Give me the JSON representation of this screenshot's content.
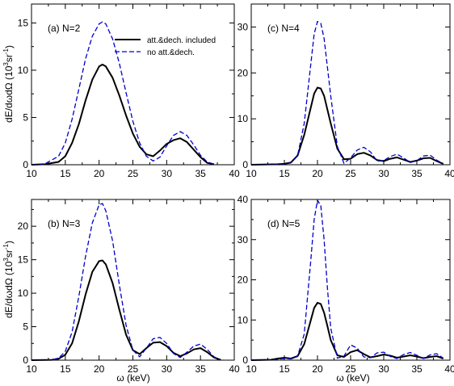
{
  "figure": {
    "ylabel_main": "dE/dωdΩ (10",
    "ylabel_sup1": "3",
    "ylabel_mid": "sr",
    "ylabel_sup2": "-1",
    "ylabel_end": ")",
    "xlabel": "ω (keV)"
  },
  "legend": {
    "solid_label": "att.&dech. included",
    "dashed_label": "no att.&dech."
  },
  "colors": {
    "solid": "#000000",
    "dashed": "#0000cc"
  },
  "chart_data": [
    {
      "type": "line",
      "panel_label": "(a) N=2",
      "xlim": [
        10,
        40
      ],
      "ylim": [
        0,
        17
      ],
      "xticks": [
        10,
        15,
        20,
        25,
        30,
        35,
        40
      ],
      "yticks": [
        0,
        5,
        10,
        15
      ],
      "has_legend": true,
      "series": [
        {
          "name": "att.&dech. included",
          "style": "solid",
          "x": [
            10,
            12,
            14,
            15,
            16,
            17,
            18,
            19,
            20,
            20.5,
            21,
            22,
            23,
            24,
            25,
            26,
            27,
            28,
            29,
            30,
            31,
            32,
            33,
            34,
            35,
            36,
            37
          ],
          "y": [
            0,
            0.05,
            0.3,
            0.9,
            2.3,
            4.3,
            6.8,
            9.0,
            10.4,
            10.6,
            10.4,
            9.2,
            7.3,
            5.2,
            3.3,
            1.9,
            1.1,
            0.9,
            1.5,
            2.2,
            2.6,
            2.8,
            2.4,
            1.6,
            0.8,
            0.2,
            0.05
          ]
        },
        {
          "name": "no att.&dech.",
          "style": "dashed",
          "x": [
            10,
            12,
            14,
            15,
            16,
            17,
            18,
            19,
            20,
            20.5,
            21,
            22,
            23,
            24,
            25,
            26,
            27,
            28,
            29,
            30,
            31,
            32,
            33,
            34,
            35,
            36,
            37
          ],
          "y": [
            0,
            0.1,
            0.9,
            2.3,
            4.8,
            8.0,
            11.2,
            13.6,
            14.9,
            15.1,
            14.9,
            13.3,
            10.7,
            7.6,
            4.6,
            2.3,
            0.9,
            0.4,
            0.8,
            2.0,
            3.1,
            3.5,
            3.1,
            2.1,
            1.0,
            0.3,
            0.05
          ]
        }
      ]
    },
    {
      "type": "line",
      "panel_label": "(c) N=4",
      "xlim": [
        10,
        40
      ],
      "ylim": [
        0,
        35
      ],
      "xticks": [
        10,
        15,
        20,
        25,
        30,
        35,
        40
      ],
      "yticks": [
        0,
        10,
        20,
        30
      ],
      "has_legend": false,
      "series": [
        {
          "name": "att.&dech. included",
          "style": "solid",
          "x": [
            10,
            14,
            15,
            16,
            17,
            18,
            19,
            19.5,
            20,
            20.5,
            21,
            22,
            23,
            24,
            25,
            26,
            27,
            28,
            29,
            30,
            31,
            32,
            33,
            34,
            35,
            36,
            37,
            38,
            39
          ],
          "y": [
            0,
            0.1,
            0.2,
            0.5,
            2.0,
            6.5,
            12.5,
            15.5,
            16.8,
            16.6,
            15.0,
            9.0,
            3.5,
            1.2,
            1.3,
            2.3,
            2.6,
            2.0,
            1.0,
            0.8,
            1.3,
            1.6,
            1.1,
            0.6,
            0.9,
            1.4,
            1.5,
            0.8,
            0.2
          ]
        },
        {
          "name": "no att.&dech.",
          "style": "dashed",
          "x": [
            10,
            14,
            15,
            16,
            17,
            18,
            19,
            19.5,
            20,
            20.5,
            21,
            22,
            23,
            24,
            25,
            26,
            27,
            28,
            29,
            30,
            31,
            32,
            33,
            34,
            35,
            36,
            37,
            38,
            39
          ],
          "y": [
            0,
            0.05,
            0.1,
            0.4,
            2.0,
            9.0,
            22.0,
            28.5,
            31.2,
            30.8,
            27.5,
            15.0,
            4.0,
            0.3,
            1.5,
            3.2,
            3.8,
            2.8,
            0.8,
            0.9,
            1.8,
            2.3,
            1.5,
            0.5,
            0.9,
            1.9,
            2.1,
            1.0,
            0.2
          ]
        }
      ]
    },
    {
      "type": "line",
      "panel_label": "(b) N=3",
      "xlim": [
        10,
        40
      ],
      "ylim": [
        0,
        24
      ],
      "xticks": [
        10,
        15,
        20,
        25,
        30,
        35,
        40
      ],
      "yticks": [
        0,
        5,
        10,
        15,
        20
      ],
      "has_legend": false,
      "series": [
        {
          "name": "att.&dech. included",
          "style": "solid",
          "x": [
            10,
            13,
            14,
            15,
            16,
            17,
            18,
            19,
            20,
            20.5,
            21,
            22,
            23,
            24,
            25,
            26,
            27,
            28,
            29,
            30,
            31,
            32,
            33,
            34,
            35,
            36,
            37,
            38
          ],
          "y": [
            0,
            0.05,
            0.2,
            0.8,
            2.5,
            5.8,
            9.8,
            13.2,
            14.8,
            14.9,
            14.3,
            11.5,
            7.5,
            3.8,
            1.5,
            0.9,
            1.8,
            2.6,
            2.7,
            2.1,
            1.1,
            0.6,
            1.0,
            1.6,
            1.8,
            1.2,
            0.4,
            0.05
          ]
        },
        {
          "name": "no att.&dech.",
          "style": "dashed",
          "x": [
            10,
            13,
            14,
            15,
            16,
            17,
            18,
            19,
            20,
            20.5,
            21,
            22,
            23,
            24,
            25,
            26,
            27,
            28,
            29,
            30,
            31,
            32,
            33,
            34,
            35,
            36,
            37,
            38
          ],
          "y": [
            0,
            0.05,
            0.3,
            1.3,
            4.2,
            9.5,
            15.5,
            20.5,
            23.2,
            23.4,
            22.3,
            17.8,
            11.2,
            5.2,
            1.5,
            0.5,
            1.8,
            3.2,
            3.4,
            2.5,
            1.0,
            0.4,
            1.2,
            2.1,
            2.4,
            1.6,
            0.5,
            0.05
          ]
        }
      ]
    },
    {
      "type": "line",
      "panel_label": "(d) N=5",
      "xlim": [
        10,
        40
      ],
      "ylim": [
        0,
        40
      ],
      "xticks": [
        10,
        15,
        20,
        25,
        30,
        35,
        40
      ],
      "yticks": [
        0,
        10,
        20,
        30,
        40
      ],
      "has_legend": false,
      "series": [
        {
          "name": "att.&dech. included",
          "style": "solid",
          "x": [
            10,
            13,
            14,
            15,
            16,
            17,
            18,
            19,
            19.5,
            20,
            20.5,
            21,
            21.5,
            22,
            23,
            24,
            25,
            26,
            27,
            28,
            29,
            30,
            31,
            32,
            33,
            34,
            35,
            36,
            37,
            38,
            39
          ],
          "y": [
            0,
            0.1,
            0.4,
            0.6,
            0.4,
            1.0,
            4.0,
            10.0,
            13.0,
            14.3,
            14.0,
            11.8,
            8.5,
            5.0,
            1.2,
            0.8,
            2.0,
            2.5,
            1.5,
            0.7,
            1.0,
            1.4,
            1.1,
            0.6,
            0.9,
            1.2,
            0.9,
            0.5,
            0.8,
            1.0,
            0.4
          ]
        },
        {
          "name": "no att.&dech.",
          "style": "dashed",
          "x": [
            10,
            13,
            14,
            15,
            16,
            17,
            18,
            19,
            19.5,
            20,
            20.5,
            21,
            21.5,
            22,
            23,
            24,
            25,
            26,
            27,
            28,
            29,
            30,
            31,
            32,
            33,
            34,
            35,
            36,
            37,
            38,
            39
          ],
          "y": [
            0,
            0.05,
            0.2,
            0.4,
            0.3,
            1.0,
            6.5,
            25.0,
            35.0,
            39.8,
            38.5,
            30.0,
            18.0,
            8.0,
            0.5,
            1.0,
            3.8,
            3.0,
            0.8,
            0.6,
            1.8,
            2.0,
            0.9,
            0.4,
            1.4,
            1.9,
            1.2,
            0.4,
            1.3,
            1.6,
            0.5
          ]
        }
      ]
    }
  ]
}
